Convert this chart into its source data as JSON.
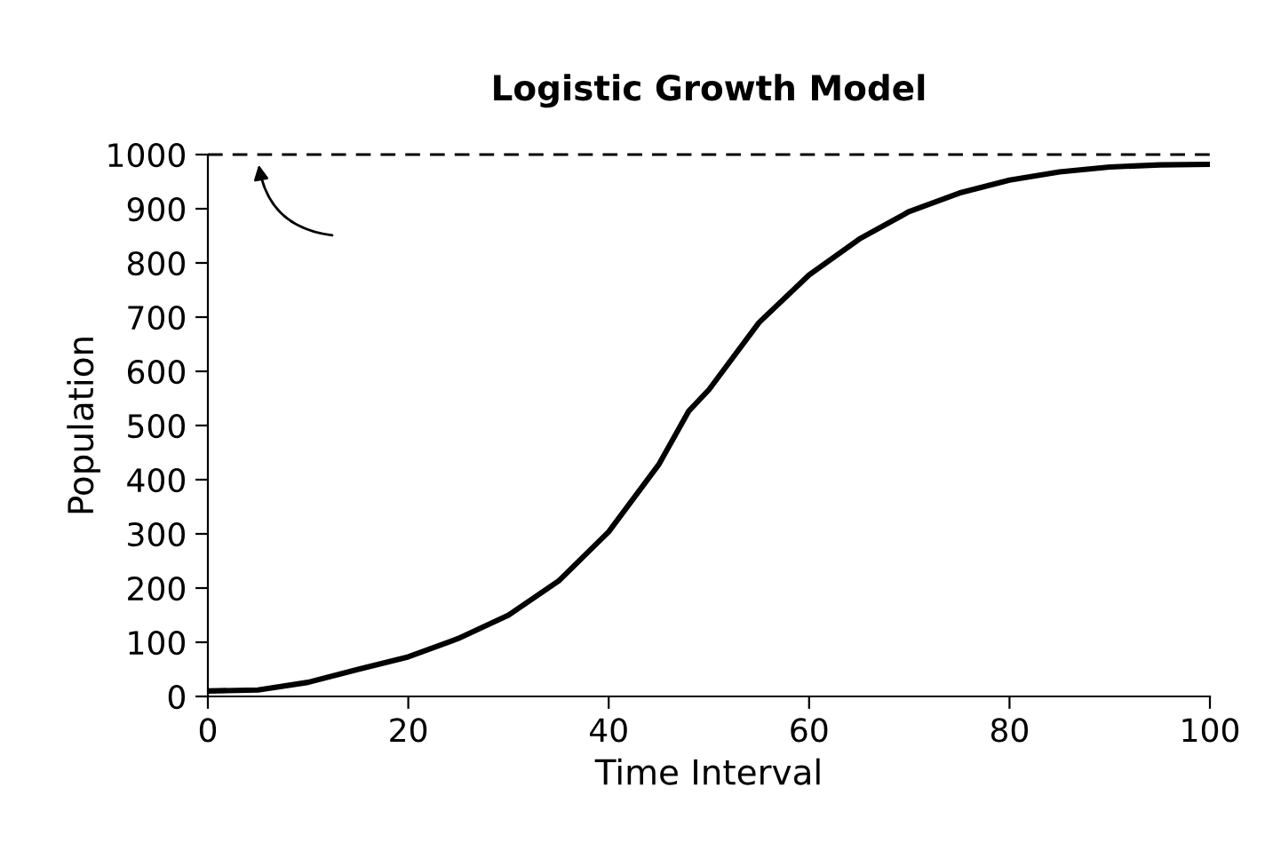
{
  "chart_data": {
    "type": "line",
    "title": "Logistic Growth Model",
    "xlabel": "Time Interval",
    "ylabel": "Population",
    "x": [
      0,
      5,
      10,
      15,
      20,
      25,
      30,
      35,
      40,
      45,
      48,
      50,
      55,
      60,
      65,
      70,
      75,
      80,
      85,
      90,
      95,
      100
    ],
    "series": [
      {
        "color": "#000000",
        "values": [
          10,
          12,
          26,
          50,
          73,
          107,
          150,
          213,
          304,
          428,
          527,
          566,
          690,
          778,
          844,
          895,
          929,
          953,
          968,
          977,
          981,
          982
        ]
      }
    ],
    "xlim": [
      0,
      100
    ],
    "ylim": [
      0,
      1000
    ],
    "xticks": [
      0,
      20,
      40,
      60,
      80,
      100
    ],
    "yticks": [
      0,
      100,
      200,
      300,
      400,
      500,
      600,
      700,
      800,
      900,
      1000
    ],
    "ref_lines": [
      {
        "axis": "y",
        "value": 1000,
        "color": "#000000",
        "line_style": "dashed"
      }
    ],
    "grid": false,
    "legend": false,
    "marker": "none",
    "line_style": "solid"
  }
}
